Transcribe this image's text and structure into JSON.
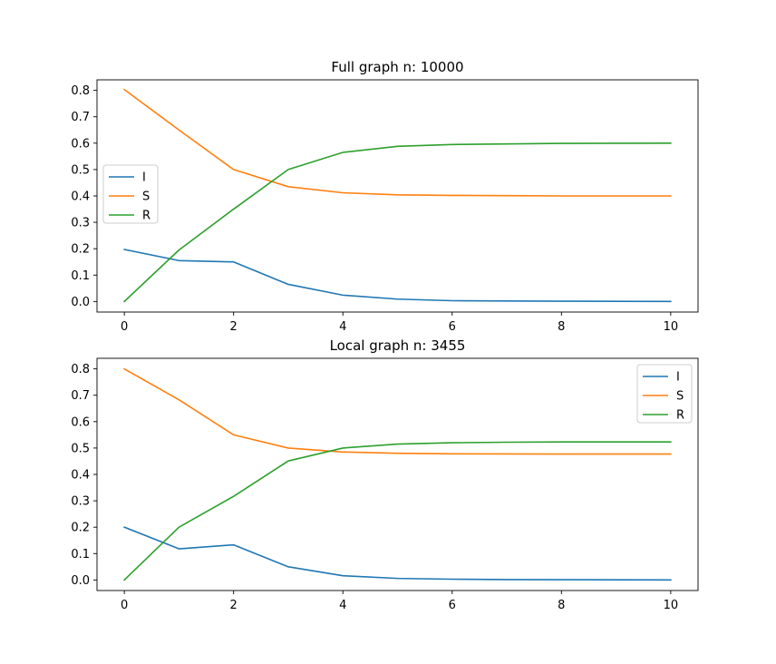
{
  "figure": {
    "background": "#ffffff"
  },
  "series_colors": {
    "I": "#1f77b4",
    "S": "#ff7f0e",
    "R": "#2ca02c"
  },
  "chart_data": [
    {
      "type": "line",
      "title": "Full graph n: 10000",
      "xlabel": "",
      "ylabel": "",
      "x": [
        0,
        1,
        2,
        3,
        4,
        5,
        6,
        7,
        8,
        9,
        10
      ],
      "xlim": [
        -0.5,
        10.5
      ],
      "ylim": [
        -0.04,
        0.84
      ],
      "xticks": [
        0,
        2,
        4,
        6,
        8,
        10
      ],
      "yticks": [
        0.0,
        0.1,
        0.2,
        0.3,
        0.4,
        0.5,
        0.6,
        0.7,
        0.8
      ],
      "grid": false,
      "legend": "center-left",
      "series": [
        {
          "name": "I",
          "values": [
            0.197,
            0.155,
            0.15,
            0.065,
            0.024,
            0.009,
            0.003,
            0.002,
            0.001,
            0.0005,
            0.0003
          ]
        },
        {
          "name": "S",
          "values": [
            0.803,
            0.65,
            0.5,
            0.435,
            0.412,
            0.404,
            0.402,
            0.401,
            0.4,
            0.4,
            0.4
          ]
        },
        {
          "name": "R",
          "values": [
            0.0,
            0.195,
            0.35,
            0.5,
            0.565,
            0.588,
            0.595,
            0.597,
            0.599,
            0.5995,
            0.6
          ]
        }
      ]
    },
    {
      "type": "line",
      "title": "Local graph n: 3455",
      "xlabel": "",
      "ylabel": "",
      "x": [
        0,
        1,
        2,
        3,
        4,
        5,
        6,
        7,
        8,
        9,
        10
      ],
      "xlim": [
        -0.5,
        10.5
      ],
      "ylim": [
        -0.04,
        0.84
      ],
      "xticks": [
        0,
        2,
        4,
        6,
        8,
        10
      ],
      "yticks": [
        0.0,
        0.1,
        0.2,
        0.3,
        0.4,
        0.5,
        0.6,
        0.7,
        0.8
      ],
      "grid": false,
      "legend": "top-right",
      "series": [
        {
          "name": "I",
          "values": [
            0.2,
            0.118,
            0.133,
            0.05,
            0.016,
            0.006,
            0.003,
            0.0015,
            0.001,
            0.0005,
            0.0003
          ]
        },
        {
          "name": "S",
          "values": [
            0.8,
            0.683,
            0.55,
            0.5,
            0.485,
            0.48,
            0.478,
            0.4775,
            0.477,
            0.477,
            0.477
          ]
        },
        {
          "name": "R",
          "values": [
            0.0,
            0.2,
            0.317,
            0.451,
            0.5,
            0.515,
            0.52,
            0.522,
            0.523,
            0.523,
            0.523
          ]
        }
      ]
    }
  ]
}
